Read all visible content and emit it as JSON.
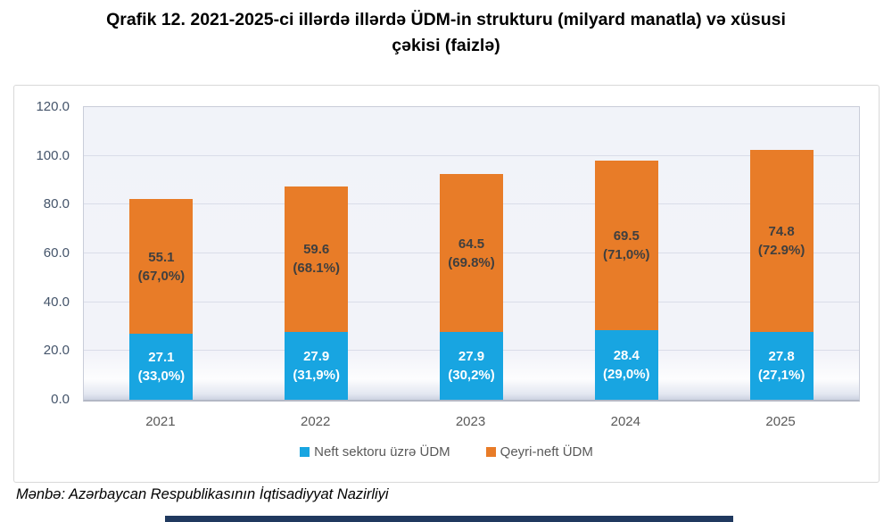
{
  "title": {
    "line1": "Qrafik 12. 2021-2025-ci illərdə illərdə ÜDM-in strukturu (milyard manatla) və xüsusi",
    "line2": "çəkisi (faizlə)"
  },
  "source": "Mənbə: Azərbaycan Respublikasının İqtisadiyyat Nazirliyi",
  "colors": {
    "oil_blue": "#18a5e1",
    "non_oil_orange": "#e87c28",
    "axis_text": "#44546a",
    "category_text": "#595959",
    "plot_background": "#f1f3f9",
    "gridline": "#dadde9",
    "bottom_bar_navy": "#20395f"
  },
  "chart_data": {
    "type": "bar",
    "stacked": true,
    "title": "Qrafik 12. 2021-2025-ci illərdə illərdə ÜDM-in strukturu (milyard manatla) və xüsusi çəkisi (faizlə)",
    "categories": [
      "2021",
      "2022",
      "2023",
      "2024",
      "2025"
    ],
    "series": [
      {
        "name": "Neft sektoru üzrə ÜDM",
        "color": "#18a5e1",
        "values": [
          27.1,
          27.9,
          27.9,
          28.4,
          27.8
        ],
        "value_labels": [
          "27.1",
          "27.9",
          "27.9",
          "28.4",
          "27.8"
        ],
        "pct_labels": [
          "(33,0%)",
          "(31,9%)",
          "(30,2%)",
          "(29,0%)",
          "(27,1%)"
        ]
      },
      {
        "name": "Qeyri-neft ÜDM",
        "color": "#e87c28",
        "values": [
          55.1,
          59.6,
          64.5,
          69.5,
          74.8
        ],
        "value_labels": [
          "55.1",
          "59.6",
          "64.5",
          "69.5",
          "74.8"
        ],
        "pct_labels": [
          "(67,0%)",
          "(68.1%)",
          "(69.8%)",
          "(71,0%)",
          "(72.9%)"
        ]
      }
    ],
    "totals": [
      82.2,
      87.5,
      92.4,
      97.9,
      102.6
    ],
    "xlabel": "",
    "ylabel": "",
    "ylim": [
      0,
      120
    ],
    "yticks": [
      "120.0",
      "100.0",
      "80.0",
      "60.0",
      "40.0",
      "20.0",
      "0.0"
    ],
    "grid": true,
    "legend_position": "bottom"
  }
}
